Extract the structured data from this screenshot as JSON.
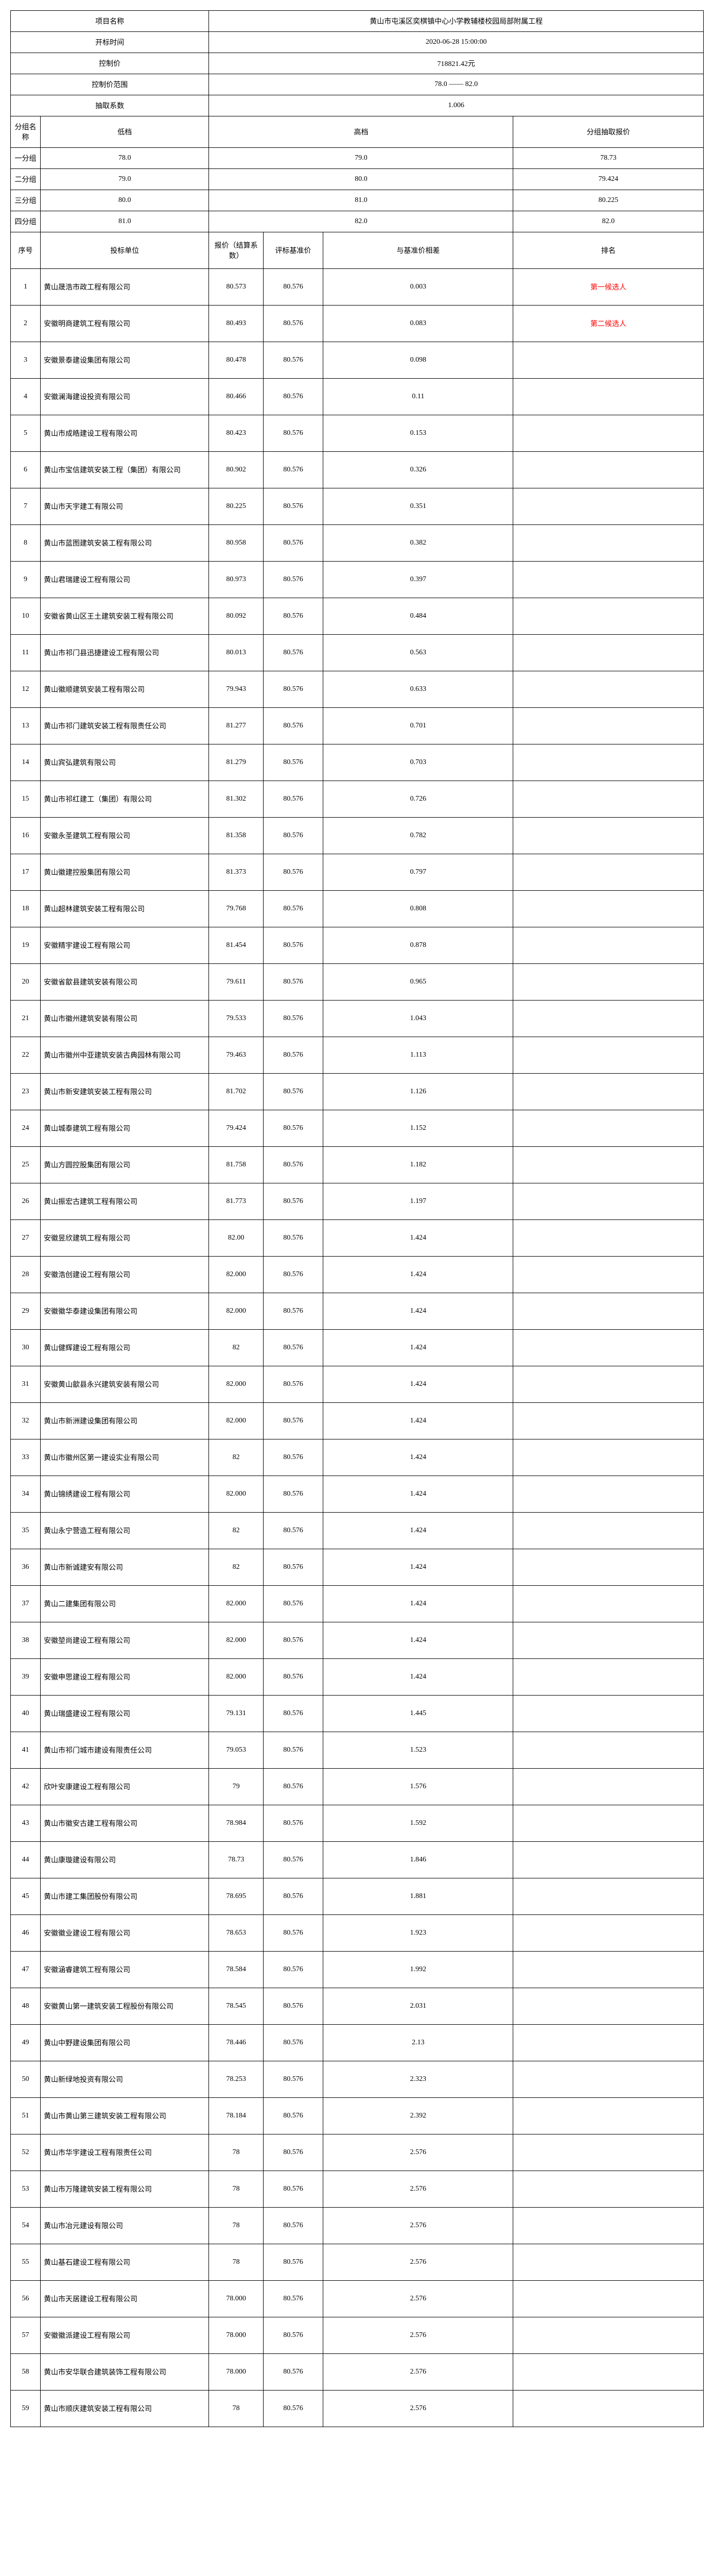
{
  "header": {
    "project_label": "项目名称",
    "project_value": "黄山市屯溪区奕棋镇中心小学教辅楼校园局部附属工程",
    "open_time_label": "开标时间",
    "open_time_value": "2020-06-28 15:00:00",
    "control_price_label": "控制价",
    "control_price_value": "718821.42元",
    "control_range_label": "控制价范围",
    "control_range_value": "78.0 —— 82.0",
    "draw_coef_label": "抽取系数",
    "draw_coef_value": "1.006"
  },
  "group_header": {
    "group_name": "分组名称",
    "low": "低档",
    "high": "高档",
    "draw_price": "分组抽取报价"
  },
  "groups": [
    {
      "name": "一分组",
      "low": "78.0",
      "high": "79.0",
      "draw": "78.73"
    },
    {
      "name": "二分组",
      "low": "79.0",
      "high": "80.0",
      "draw": "79.424"
    },
    {
      "name": "三分组",
      "low": "80.0",
      "high": "81.0",
      "draw": "80.225"
    },
    {
      "name": "四分组",
      "low": "81.0",
      "high": "82.0",
      "draw": "82.0"
    }
  ],
  "columns": {
    "idx": "序号",
    "unit": "投标单位",
    "price": "报价（结算系数）",
    "base": "评标基准价",
    "diff": "与基准价相差",
    "rank": "排名"
  },
  "rows": [
    {
      "i": "1",
      "u": "黄山晟浩市政工程有限公司",
      "p": "80.573",
      "b": "80.576",
      "d": "0.003",
      "r": "第一候选人",
      "red": true
    },
    {
      "i": "2",
      "u": "安徽明商建筑工程有限公司",
      "p": "80.493",
      "b": "80.576",
      "d": "0.083",
      "r": "第二候选人",
      "red": true
    },
    {
      "i": "3",
      "u": "安徽景泰建设集团有限公司",
      "p": "80.478",
      "b": "80.576",
      "d": "0.098",
      "r": ""
    },
    {
      "i": "4",
      "u": "安徽澜海建设投资有限公司",
      "p": "80.466",
      "b": "80.576",
      "d": "0.11",
      "r": ""
    },
    {
      "i": "5",
      "u": "黄山市成皓建设工程有限公司",
      "p": "80.423",
      "b": "80.576",
      "d": "0.153",
      "r": ""
    },
    {
      "i": "6",
      "u": "黄山市宝信建筑安装工程（集团）有限公司",
      "p": "80.902",
      "b": "80.576",
      "d": "0.326",
      "r": ""
    },
    {
      "i": "7",
      "u": "黄山市天宇建工有限公司",
      "p": "80.225",
      "b": "80.576",
      "d": "0.351",
      "r": ""
    },
    {
      "i": "8",
      "u": "黄山市蓝图建筑安装工程有限公司",
      "p": "80.958",
      "b": "80.576",
      "d": "0.382",
      "r": ""
    },
    {
      "i": "9",
      "u": "黄山君瑞建设工程有限公司",
      "p": "80.973",
      "b": "80.576",
      "d": "0.397",
      "r": ""
    },
    {
      "i": "10",
      "u": "安徽省黄山区王土建筑安装工程有限公司",
      "p": "80.092",
      "b": "80.576",
      "d": "0.484",
      "r": ""
    },
    {
      "i": "11",
      "u": "黄山市祁门县迅捷建设工程有限公司",
      "p": "80.013",
      "b": "80.576",
      "d": "0.563",
      "r": ""
    },
    {
      "i": "12",
      "u": "黄山徽顺建筑安装工程有限公司",
      "p": "79.943",
      "b": "80.576",
      "d": "0.633",
      "r": ""
    },
    {
      "i": "13",
      "u": "黄山市祁门建筑安装工程有限责任公司",
      "p": "81.277",
      "b": "80.576",
      "d": "0.701",
      "r": ""
    },
    {
      "i": "14",
      "u": "黄山宾弘建筑有限公司",
      "p": "81.279",
      "b": "80.576",
      "d": "0.703",
      "r": ""
    },
    {
      "i": "15",
      "u": "黄山市祁红建工（集团）有限公司",
      "p": "81.302",
      "b": "80.576",
      "d": "0.726",
      "r": ""
    },
    {
      "i": "16",
      "u": "安徽永圣建筑工程有限公司",
      "p": "81.358",
      "b": "80.576",
      "d": "0.782",
      "r": ""
    },
    {
      "i": "17",
      "u": "黄山徽建控股集团有限公司",
      "p": "81.373",
      "b": "80.576",
      "d": "0.797",
      "r": ""
    },
    {
      "i": "18",
      "u": "黄山超林建筑安装工程有限公司",
      "p": "79.768",
      "b": "80.576",
      "d": "0.808",
      "r": ""
    },
    {
      "i": "19",
      "u": "安徽精宇建设工程有限公司",
      "p": "81.454",
      "b": "80.576",
      "d": "0.878",
      "r": ""
    },
    {
      "i": "20",
      "u": "安徽省歙县建筑安装有限公司",
      "p": "79.611",
      "b": "80.576",
      "d": "0.965",
      "r": ""
    },
    {
      "i": "21",
      "u": "黄山市徽州建筑安装有限公司",
      "p": "79.533",
      "b": "80.576",
      "d": "1.043",
      "r": ""
    },
    {
      "i": "22",
      "u": "黄山市徽州中亚建筑安装古典园林有限公司",
      "p": "79.463",
      "b": "80.576",
      "d": "1.113",
      "r": ""
    },
    {
      "i": "23",
      "u": "黄山市新安建筑安装工程有限公司",
      "p": "81.702",
      "b": "80.576",
      "d": "1.126",
      "r": ""
    },
    {
      "i": "24",
      "u": "黄山城泰建筑工程有限公司",
      "p": "79.424",
      "b": "80.576",
      "d": "1.152",
      "r": ""
    },
    {
      "i": "25",
      "u": "黄山方圆控股集团有限公司",
      "p": "81.758",
      "b": "80.576",
      "d": "1.182",
      "r": ""
    },
    {
      "i": "26",
      "u": "黄山振宏古建筑工程有限公司",
      "p": "81.773",
      "b": "80.576",
      "d": "1.197",
      "r": ""
    },
    {
      "i": "27",
      "u": "安徽昱欣建筑工程有限公司",
      "p": "82.00",
      "b": "80.576",
      "d": "1.424",
      "r": ""
    },
    {
      "i": "28",
      "u": "安徽浩创建设工程有限公司",
      "p": "82.000",
      "b": "80.576",
      "d": "1.424",
      "r": ""
    },
    {
      "i": "29",
      "u": "安徽徽华泰建设集团有限公司",
      "p": "82.000",
      "b": "80.576",
      "d": "1.424",
      "r": ""
    },
    {
      "i": "30",
      "u": "黄山健辉建设工程有限公司",
      "p": "82",
      "b": "80.576",
      "d": "1.424",
      "r": ""
    },
    {
      "i": "31",
      "u": "安徽黄山歙县永兴建筑安装有限公司",
      "p": "82.000",
      "b": "80.576",
      "d": "1.424",
      "r": ""
    },
    {
      "i": "32",
      "u": "黄山市新洲建设集团有限公司",
      "p": "82.000",
      "b": "80.576",
      "d": "1.424",
      "r": ""
    },
    {
      "i": "33",
      "u": "黄山市徽州区第一建设实业有限公司",
      "p": "82",
      "b": "80.576",
      "d": "1.424",
      "r": ""
    },
    {
      "i": "34",
      "u": "黄山锦绣建设工程有限公司",
      "p": "82.000",
      "b": "80.576",
      "d": "1.424",
      "r": ""
    },
    {
      "i": "35",
      "u": "黄山永宁营造工程有限公司",
      "p": "82",
      "b": "80.576",
      "d": "1.424",
      "r": ""
    },
    {
      "i": "36",
      "u": "黄山市新诚建安有限公司",
      "p": "82",
      "b": "80.576",
      "d": "1.424",
      "r": ""
    },
    {
      "i": "37",
      "u": "黄山二建集团有限公司",
      "p": "82.000",
      "b": "80.576",
      "d": "1.424",
      "r": ""
    },
    {
      "i": "38",
      "u": "安徽堃尚建设工程有限公司",
      "p": "82.000",
      "b": "80.576",
      "d": "1.424",
      "r": ""
    },
    {
      "i": "39",
      "u": "安徽申思建设工程有限公司",
      "p": "82.000",
      "b": "80.576",
      "d": "1.424",
      "r": ""
    },
    {
      "i": "40",
      "u": "黄山瑞盛建设工程有限公司",
      "p": "79.131",
      "b": "80.576",
      "d": "1.445",
      "r": ""
    },
    {
      "i": "41",
      "u": "黄山市祁门城市建设有限责任公司",
      "p": "79.053",
      "b": "80.576",
      "d": "1.523",
      "r": ""
    },
    {
      "i": "42",
      "u": "欣叶安康建设工程有限公司",
      "p": "79",
      "b": "80.576",
      "d": "1.576",
      "r": ""
    },
    {
      "i": "43",
      "u": "黄山市徽安古建工程有限公司",
      "p": "78.984",
      "b": "80.576",
      "d": "1.592",
      "r": ""
    },
    {
      "i": "44",
      "u": "黄山康璇建设有限公司",
      "p": "78.73",
      "b": "80.576",
      "d": "1.846",
      "r": ""
    },
    {
      "i": "45",
      "u": "黄山市建工集团股份有限公司",
      "p": "78.695",
      "b": "80.576",
      "d": "1.881",
      "r": ""
    },
    {
      "i": "46",
      "u": "安徽徽业建设工程有限公司",
      "p": "78.653",
      "b": "80.576",
      "d": "1.923",
      "r": ""
    },
    {
      "i": "47",
      "u": "安徽涵睿建筑工程有限公司",
      "p": "78.584",
      "b": "80.576",
      "d": "1.992",
      "r": ""
    },
    {
      "i": "48",
      "u": "安徽黄山第一建筑安装工程股份有限公司",
      "p": "78.545",
      "b": "80.576",
      "d": "2.031",
      "r": ""
    },
    {
      "i": "49",
      "u": "黄山中野建设集团有限公司",
      "p": "78.446",
      "b": "80.576",
      "d": "2.13",
      "r": ""
    },
    {
      "i": "50",
      "u": "黄山新绿地投资有限公司",
      "p": "78.253",
      "b": "80.576",
      "d": "2.323",
      "r": ""
    },
    {
      "i": "51",
      "u": "黄山市黄山第三建筑安装工程有限公司",
      "p": "78.184",
      "b": "80.576",
      "d": "2.392",
      "r": ""
    },
    {
      "i": "52",
      "u": "黄山市华宇建设工程有限责任公司",
      "p": "78",
      "b": "80.576",
      "d": "2.576",
      "r": ""
    },
    {
      "i": "53",
      "u": "黄山市万隆建筑安装工程有限公司",
      "p": "78",
      "b": "80.576",
      "d": "2.576",
      "r": ""
    },
    {
      "i": "54",
      "u": "黄山市冶元建设有限公司",
      "p": "78",
      "b": "80.576",
      "d": "2.576",
      "r": ""
    },
    {
      "i": "55",
      "u": "黄山基石建设工程有限公司",
      "p": "78",
      "b": "80.576",
      "d": "2.576",
      "r": ""
    },
    {
      "i": "56",
      "u": "黄山市天居建设工程有限公司",
      "p": "78.000",
      "b": "80.576",
      "d": "2.576",
      "r": ""
    },
    {
      "i": "57",
      "u": "安徽徽派建设工程有限公司",
      "p": "78.000",
      "b": "80.576",
      "d": "2.576",
      "r": ""
    },
    {
      "i": "58",
      "u": "黄山市安华联合建筑装饰工程有限公司",
      "p": "78.000",
      "b": "80.576",
      "d": "2.576",
      "r": ""
    },
    {
      "i": "59",
      "u": "黄山市顺庆建筑安装工程有限公司",
      "p": "78",
      "b": "80.576",
      "d": "2.576",
      "r": ""
    }
  ]
}
